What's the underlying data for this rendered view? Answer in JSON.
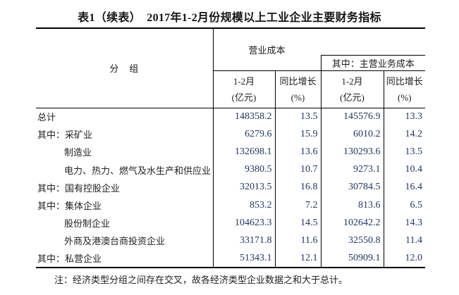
{
  "title": "表1（续表）　2017年1-2月份规模以上工业企业主要财务指标",
  "table": {
    "group_header": "分　组",
    "op_cost_header": "营业成本",
    "sub_group_header": "其中：主营业务成本",
    "columns": [
      {
        "line1": "1-2月",
        "line2": "(亿元)"
      },
      {
        "line1": "同比增长",
        "line2": "(%)"
      },
      {
        "line1": "1-2月",
        "line2": "(亿元)"
      },
      {
        "line1": "同比增长",
        "line2": "(%)"
      }
    ],
    "rows": [
      {
        "label": "总计",
        "indent": false,
        "values": [
          "148358.2",
          "13.5",
          "145576.9",
          "13.3"
        ]
      },
      {
        "label": "其中：采矿业",
        "indent": false,
        "values": [
          "6279.6",
          "15.9",
          "6010.2",
          "14.2"
        ]
      },
      {
        "label": "制造业",
        "indent": true,
        "values": [
          "132698.1",
          "13.6",
          "130293.6",
          "13.5"
        ]
      },
      {
        "label": "电力、热力、燃气及水生产和供应业",
        "indent": true,
        "values": [
          "9380.5",
          "10.7",
          "9273.1",
          "10.4"
        ]
      },
      {
        "label": "其中：国有控股企业",
        "indent": false,
        "values": [
          "32013.5",
          "16.8",
          "30784.5",
          "16.4"
        ]
      },
      {
        "label": "其中：集体企业",
        "indent": false,
        "values": [
          "853.2",
          "7.2",
          "813.6",
          "6.5"
        ]
      },
      {
        "label": "股份制企业",
        "indent": true,
        "values": [
          "104623.3",
          "14.5",
          "102642.2",
          "14.3"
        ]
      },
      {
        "label": "外商及港澳台商投资企业",
        "indent": true,
        "values": [
          "33171.8",
          "11.6",
          "32550.8",
          "11.4"
        ]
      },
      {
        "label": "其中：私营企业",
        "indent": false,
        "values": [
          "51343.1",
          "12.1",
          "50909.1",
          "12.0"
        ]
      }
    ]
  },
  "note": "注：经济类型分组之间存在交叉，故各经济类型企业数据之和大于总计。",
  "colors": {
    "number_text": "#1F3864",
    "label_text": "#222222",
    "line": "#000000"
  }
}
